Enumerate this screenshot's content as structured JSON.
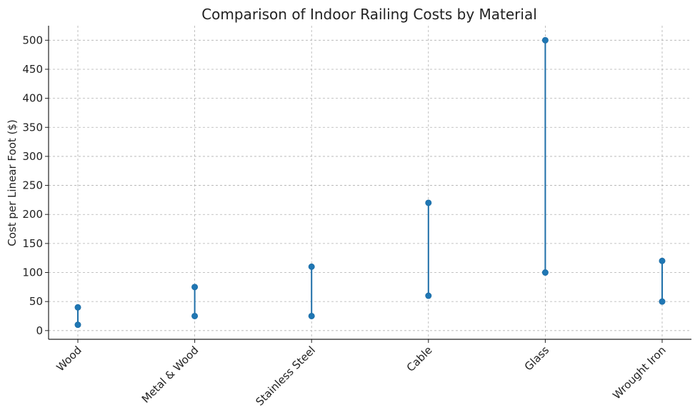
{
  "chart_data": {
    "type": "range",
    "title": "Comparison of Indoor Railing Costs by Material",
    "xlabel": "",
    "ylabel": "Cost per Linear Foot ($)",
    "categories": [
      "Wood",
      "Metal & Wood",
      "Stainless Steel",
      "Cable",
      "Glass",
      "Wrought Iron"
    ],
    "min_values": [
      10,
      25,
      25,
      60,
      100,
      50
    ],
    "max_values": [
      40,
      75,
      110,
      220,
      500,
      120
    ],
    "ylim": [
      -15,
      525
    ],
    "yticks": [
      0,
      50,
      100,
      150,
      200,
      250,
      300,
      350,
      400,
      450,
      500
    ],
    "grid": true,
    "series_color": "#1f6fa8",
    "marker_color": "#1f77b4"
  }
}
